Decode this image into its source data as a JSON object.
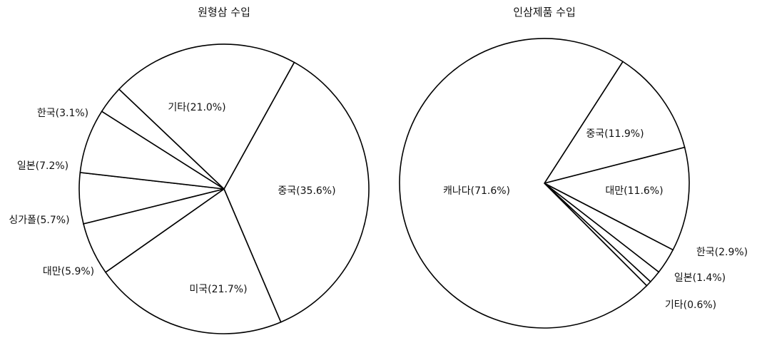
{
  "chart_data": [
    {
      "type": "pie",
      "title": "원형삼 수입",
      "slices": [
        {
          "label": "중국(35.6%)",
          "value": 35.6
        },
        {
          "label": "미국(21.7%)",
          "value": 21.7
        },
        {
          "label": "대만(5.9%)",
          "value": 5.9
        },
        {
          "label": "싱가폴(5.7%)",
          "value": 5.7
        },
        {
          "label": "일본(7.2%)",
          "value": 7.2
        },
        {
          "label": "한국(3.1%)",
          "value": 3.1
        },
        {
          "label": "기타(21.0%)",
          "value": 21.0
        }
      ]
    },
    {
      "type": "pie",
      "title": "인삼제품 수입",
      "slices": [
        {
          "label": "중국(11.9%)",
          "value": 11.9
        },
        {
          "label": "대만(11.6%)",
          "value": 11.6
        },
        {
          "label": "한국(2.9%)",
          "value": 2.9
        },
        {
          "label": "일본(1.4%)",
          "value": 1.4
        },
        {
          "label": "기타(0.6%)",
          "value": 0.6
        },
        {
          "label": "캐나다(71.6%)",
          "value": 71.6
        }
      ]
    }
  ]
}
